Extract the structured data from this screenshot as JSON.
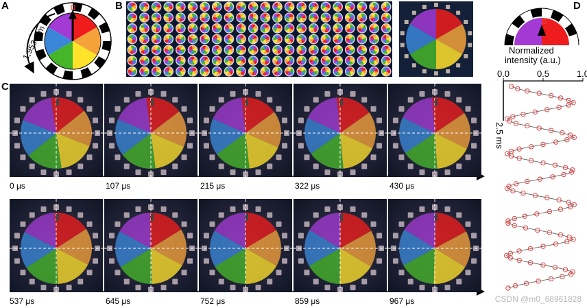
{
  "panels": {
    "a": "A",
    "b": "B",
    "c": "C",
    "d": "D"
  },
  "panel_a": {
    "rpm_label": "1,953 rpm"
  },
  "panel_d": {
    "ylabel_line1": "Normalized",
    "ylabel_line2": "intensity (a.u.)",
    "ticks": [
      "0.0",
      "0.5",
      "1.0"
    ],
    "scale_bar": "2.5 ms"
  },
  "time_row1": [
    "0 μs",
    "107 μs",
    "215 μs",
    "322 μs",
    "430 μs"
  ],
  "time_row2": [
    "537 μs",
    "645 μs",
    "752 μs",
    "859 μs",
    "967 μs"
  ],
  "colors": {
    "purple": "#a23ad3",
    "red": "#ee1c1c",
    "orange": "#f5a23a",
    "yellow": "#ffe22a",
    "green": "#45b62a",
    "blue": "#3a86d8",
    "marker": "#e84040"
  },
  "chart_data": {
    "type": "scatter",
    "xlabel": "Normalized intensity (a.u.)",
    "xlim": [
      0,
      1
    ],
    "xticks": [
      0.0,
      0.5,
      1.0
    ],
    "scale_bar": "2.5 ms",
    "period_ms": 2.05,
    "series": [
      {
        "values": [
          0.1,
          0.18,
          0.3,
          0.45,
          0.6,
          0.72,
          0.82,
          0.88,
          0.82,
          0.7,
          0.55,
          0.4,
          0.25,
          0.12,
          0.05,
          0.08,
          0.16,
          0.3,
          0.45,
          0.6,
          0.74,
          0.84,
          0.89,
          0.8,
          0.66,
          0.5,
          0.35,
          0.2,
          0.1,
          0.05,
          0.1,
          0.2,
          0.35,
          0.5,
          0.65,
          0.78,
          0.87,
          0.86,
          0.76,
          0.62,
          0.46,
          0.3,
          0.16,
          0.07,
          0.05,
          0.12,
          0.25,
          0.4,
          0.55,
          0.7,
          0.82,
          0.89,
          0.84,
          0.72,
          0.58,
          0.42,
          0.27,
          0.14,
          0.06,
          0.06,
          0.14,
          0.28,
          0.43,
          0.58,
          0.72,
          0.83,
          0.88,
          0.8,
          0.66,
          0.5,
          0.34,
          0.2,
          0.09,
          0.04,
          0.09,
          0.2,
          0.34,
          0.5,
          0.65,
          0.78,
          0.87,
          0.85,
          0.74,
          0.6,
          0.44,
          0.29,
          0.15,
          0.06
        ]
      }
    ]
  }
}
